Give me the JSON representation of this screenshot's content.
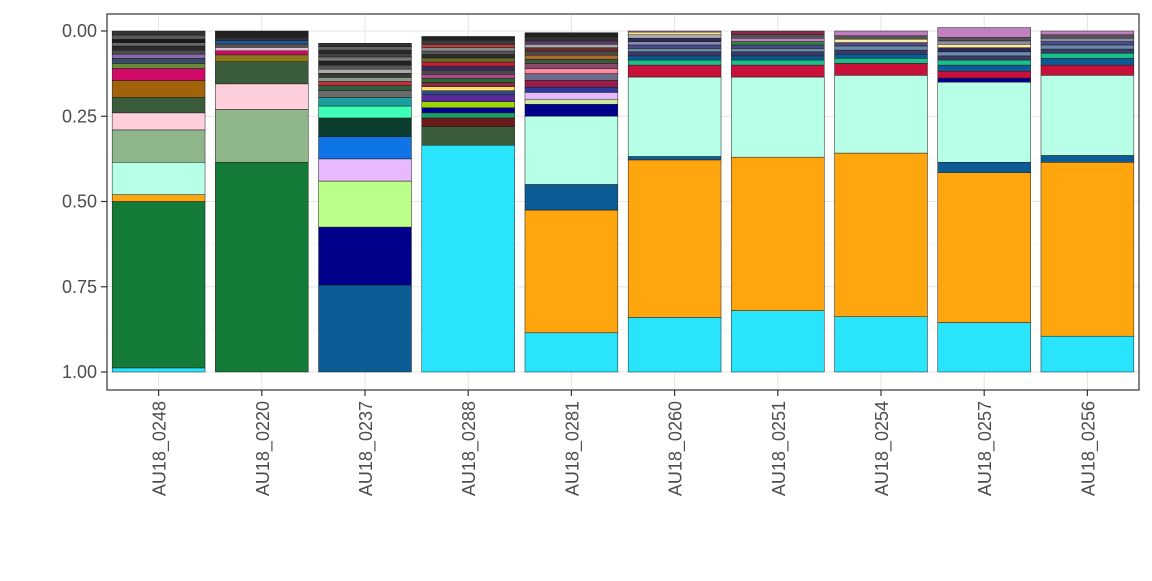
{
  "chart_data": {
    "type": "bar",
    "stacked": true,
    "orientation": "vertical",
    "y_reversed": true,
    "ylim": [
      0,
      1
    ],
    "y_ticks": [
      "0.00",
      "0.25",
      "0.50",
      "0.75",
      "1.00"
    ],
    "y_tick_values": [
      0,
      0.25,
      0.5,
      0.75,
      1.0
    ],
    "grid": true,
    "legend": "none",
    "xlabel": "",
    "ylabel": "",
    "categories": [
      "AU18_0248",
      "AU18_0220",
      "AU18_0237",
      "AU18_0288",
      "AU18_0281",
      "AU18_0260",
      "AU18_0251",
      "AU18_0254",
      "AU18_0257",
      "AU18_0256"
    ],
    "bars": [
      {
        "category": "AU18_0248",
        "segments": [
          {
            "value": 0.012,
            "color": "#29e4fb"
          },
          {
            "value": 0.488,
            "color": "#137a37"
          },
          {
            "value": 0.02,
            "color": "#ffa60f"
          },
          {
            "value": 0.095,
            "color": "#b8ffe8"
          },
          {
            "value": 0.095,
            "color": "#8fb68a"
          },
          {
            "value": 0.05,
            "color": "#ffcfdc"
          },
          {
            "value": 0.045,
            "color": "#3a5c3a"
          },
          {
            "value": 0.05,
            "color": "#a1620a"
          },
          {
            "value": 0.035,
            "color": "#d10a6a"
          },
          {
            "value": 0.015,
            "color": "#6a8a3a"
          },
          {
            "value": 0.015,
            "color": "#3a4a6a"
          },
          {
            "value": 0.012,
            "color": "#8a6aaa"
          },
          {
            "value": 0.012,
            "color": "#4a4a4a"
          },
          {
            "value": 0.012,
            "color": "#2a2a2a"
          },
          {
            "value": 0.01,
            "color": "#6a6a6a"
          },
          {
            "value": 0.01,
            "color": "#1a1a1a"
          },
          {
            "value": 0.012,
            "color": "#5a5a5a"
          },
          {
            "value": 0.012,
            "color": "#333333"
          }
        ]
      },
      {
        "category": "AU18_0220",
        "segments": [
          {
            "value": 0.615,
            "color": "#137a37"
          },
          {
            "value": 0.155,
            "color": "#8fb68a"
          },
          {
            "value": 0.075,
            "color": "#ffcfdc"
          },
          {
            "value": 0.065,
            "color": "#3a5c3a"
          },
          {
            "value": 0.02,
            "color": "#8a7a1a"
          },
          {
            "value": 0.012,
            "color": "#d10a6a"
          },
          {
            "value": 0.01,
            "color": "#e0c0d0"
          },
          {
            "value": 0.01,
            "color": "#555555"
          },
          {
            "value": 0.01,
            "color": "#1f5aa0"
          },
          {
            "value": 0.01,
            "color": "#333333"
          },
          {
            "value": 0.018,
            "color": "#222222"
          }
        ]
      },
      {
        "category": "AU18_0237",
        "segments": [
          {
            "value": 0.255,
            "color": "#0b5c94"
          },
          {
            "value": 0.17,
            "color": "#00008b"
          },
          {
            "value": 0.135,
            "color": "#b9ff8a"
          },
          {
            "value": 0.065,
            "color": "#e8b9ff"
          },
          {
            "value": 0.065,
            "color": "#0f74e6"
          },
          {
            "value": 0.055,
            "color": "#0b3d2e"
          },
          {
            "value": 0.035,
            "color": "#3dffb5"
          },
          {
            "value": 0.025,
            "color": "#1a9e9e"
          },
          {
            "value": 0.02,
            "color": "#6a6a6a"
          },
          {
            "value": 0.015,
            "color": "#2e5e3e"
          },
          {
            "value": 0.012,
            "color": "#c0303a"
          },
          {
            "value": 0.012,
            "color": "#8a9a8a"
          },
          {
            "value": 0.012,
            "color": "#3a3a3a"
          },
          {
            "value": 0.012,
            "color": "#aaaaaa"
          },
          {
            "value": 0.012,
            "color": "#555555"
          },
          {
            "value": 0.012,
            "color": "#222222"
          },
          {
            "value": 0.012,
            "color": "#777777"
          },
          {
            "value": 0.01,
            "color": "#444444"
          },
          {
            "value": 0.01,
            "color": "#2a2a2a"
          },
          {
            "value": 0.01,
            "color": "#666666"
          },
          {
            "value": 0.01,
            "color": "#333333"
          }
        ]
      },
      {
        "category": "AU18_0288",
        "segments": [
          {
            "value": 0.665,
            "color": "#29e4fb"
          },
          {
            "value": 0.055,
            "color": "#3a5c3a"
          },
          {
            "value": 0.025,
            "color": "#6a1a1a"
          },
          {
            "value": 0.015,
            "color": "#1a9e6a"
          },
          {
            "value": 0.015,
            "color": "#00008b"
          },
          {
            "value": 0.018,
            "color": "#9ad60a"
          },
          {
            "value": 0.02,
            "color": "#5a2a9a"
          },
          {
            "value": 0.012,
            "color": "#2a4a8a"
          },
          {
            "value": 0.012,
            "color": "#ffe060"
          },
          {
            "value": 0.012,
            "color": "#8a2a4a"
          },
          {
            "value": 0.012,
            "color": "#2a6a2a"
          },
          {
            "value": 0.012,
            "color": "#aa4a8a"
          },
          {
            "value": 0.012,
            "color": "#4a4a4a"
          },
          {
            "value": 0.012,
            "color": "#3a2a5a"
          },
          {
            "value": 0.012,
            "color": "#c02030"
          },
          {
            "value": 0.012,
            "color": "#6a6a2a"
          },
          {
            "value": 0.01,
            "color": "#2a2a2a"
          },
          {
            "value": 0.01,
            "color": "#555555"
          },
          {
            "value": 0.01,
            "color": "#8a8a8a"
          },
          {
            "value": 0.01,
            "color": "#b04040"
          },
          {
            "value": 0.012,
            "color": "#3a3a3a"
          },
          {
            "value": 0.011,
            "color": "#222222"
          }
        ]
      },
      {
        "category": "AU18_0281",
        "segments": [
          {
            "value": 0.115,
            "color": "#29e4fb"
          },
          {
            "value": 0.36,
            "color": "#ffa60f"
          },
          {
            "value": 0.075,
            "color": "#0b5c94"
          },
          {
            "value": 0.2,
            "color": "#b8ffe8"
          },
          {
            "value": 0.035,
            "color": "#00008b"
          },
          {
            "value": 0.015,
            "color": "#cfe8a0"
          },
          {
            "value": 0.02,
            "color": "#e8b9ff"
          },
          {
            "value": 0.015,
            "color": "#2a3a9a"
          },
          {
            "value": 0.02,
            "color": "#9a1a4a"
          },
          {
            "value": 0.02,
            "color": "#6a6a8a"
          },
          {
            "value": 0.015,
            "color": "#ff8aa0"
          },
          {
            "value": 0.015,
            "color": "#8a4a6a"
          },
          {
            "value": 0.012,
            "color": "#3a5a3a"
          },
          {
            "value": 0.012,
            "color": "#aa6a2a"
          },
          {
            "value": 0.012,
            "color": "#4a4a4a"
          },
          {
            "value": 0.01,
            "color": "#6a2a2a"
          },
          {
            "value": 0.01,
            "color": "#aaaaaa"
          },
          {
            "value": 0.01,
            "color": "#5a3a6a"
          },
          {
            "value": 0.012,
            "color": "#333333"
          },
          {
            "value": 0.012,
            "color": "#222222"
          }
        ]
      },
      {
        "category": "AU18_0260",
        "segments": [
          {
            "value": 0.16,
            "color": "#29e4fb"
          },
          {
            "value": 0.462,
            "color": "#ffa60f"
          },
          {
            "value": 0.01,
            "color": "#0b5c94"
          },
          {
            "value": 0.233,
            "color": "#b8ffe8"
          },
          {
            "value": 0.035,
            "color": "#c8103a"
          },
          {
            "value": 0.015,
            "color": "#1ac08a"
          },
          {
            "value": 0.012,
            "color": "#0b5c94"
          },
          {
            "value": 0.012,
            "color": "#3a3a6a"
          },
          {
            "value": 0.01,
            "color": "#6a8aaa"
          },
          {
            "value": 0.01,
            "color": "#4a4a8a"
          },
          {
            "value": 0.01,
            "color": "#8a8aaa"
          },
          {
            "value": 0.01,
            "color": "#2a2a5a"
          },
          {
            "value": 0.01,
            "color": "#aaaaaa"
          },
          {
            "value": 0.008,
            "color": "#ffe8a0"
          },
          {
            "value": 0.003,
            "color": "#c080c0"
          }
        ]
      },
      {
        "category": "AU18_0251",
        "segments": [
          {
            "value": 0.18,
            "color": "#29e4fb"
          },
          {
            "value": 0.45,
            "color": "#ffa60f"
          },
          {
            "value": 0.235,
            "color": "#b8ffe8"
          },
          {
            "value": 0.035,
            "color": "#c8103a"
          },
          {
            "value": 0.015,
            "color": "#1ac08a"
          },
          {
            "value": 0.012,
            "color": "#0b5c94"
          },
          {
            "value": 0.012,
            "color": "#3a3a6a"
          },
          {
            "value": 0.01,
            "color": "#6a8aaa"
          },
          {
            "value": 0.01,
            "color": "#4a4a8a"
          },
          {
            "value": 0.01,
            "color": "#2a8a3a"
          },
          {
            "value": 0.01,
            "color": "#c080c0"
          },
          {
            "value": 0.01,
            "color": "#555555"
          },
          {
            "value": 0.011,
            "color": "#8a2a4a"
          }
        ]
      },
      {
        "category": "AU18_0254",
        "segments": [
          {
            "value": 0.162,
            "color": "#29e4fb"
          },
          {
            "value": 0.48,
            "color": "#ffa60f"
          },
          {
            "value": 0.228,
            "color": "#b8ffe8"
          },
          {
            "value": 0.035,
            "color": "#c8103a"
          },
          {
            "value": 0.015,
            "color": "#1ac08a"
          },
          {
            "value": 0.012,
            "color": "#0b5c94"
          },
          {
            "value": 0.012,
            "color": "#3a3a6a"
          },
          {
            "value": 0.012,
            "color": "#6a8aaa"
          },
          {
            "value": 0.01,
            "color": "#4a4a8a"
          },
          {
            "value": 0.01,
            "color": "#ffe8a0"
          },
          {
            "value": 0.01,
            "color": "#555555"
          },
          {
            "value": 0.014,
            "color": "#c080c0"
          }
        ]
      },
      {
        "category": "AU18_0257",
        "segments": [
          {
            "value": 0.145,
            "color": "#29e4fb"
          },
          {
            "value": 0.44,
            "color": "#ffa60f"
          },
          {
            "value": 0.03,
            "color": "#0b5c94"
          },
          {
            "value": 0.235,
            "color": "#b8ffe8"
          },
          {
            "value": 0.012,
            "color": "#00008b"
          },
          {
            "value": 0.02,
            "color": "#c8103a"
          },
          {
            "value": 0.018,
            "color": "#0b5c94"
          },
          {
            "value": 0.015,
            "color": "#1ac08a"
          },
          {
            "value": 0.012,
            "color": "#3a3a6a"
          },
          {
            "value": 0.012,
            "color": "#6a8aaa"
          },
          {
            "value": 0.012,
            "color": "#2a2a5a"
          },
          {
            "value": 0.01,
            "color": "#ffe8a0"
          },
          {
            "value": 0.01,
            "color": "#8a8aaa"
          },
          {
            "value": 0.01,
            "color": "#555555"
          },
          {
            "value": 0.029,
            "color": "#c080c0"
          }
        ]
      },
      {
        "category": "AU18_0256",
        "segments": [
          {
            "value": 0.105,
            "color": "#29e4fb"
          },
          {
            "value": 0.51,
            "color": "#ffa60f"
          },
          {
            "value": 0.02,
            "color": "#0b5c94"
          },
          {
            "value": 0.235,
            "color": "#b8ffe8"
          },
          {
            "value": 0.03,
            "color": "#c8103a"
          },
          {
            "value": 0.02,
            "color": "#0b5c94"
          },
          {
            "value": 0.015,
            "color": "#1ac08a"
          },
          {
            "value": 0.012,
            "color": "#3a3a6a"
          },
          {
            "value": 0.012,
            "color": "#6a8aaa"
          },
          {
            "value": 0.01,
            "color": "#4a4a8a"
          },
          {
            "value": 0.01,
            "color": "#8a8aaa"
          },
          {
            "value": 0.01,
            "color": "#555555"
          },
          {
            "value": 0.011,
            "color": "#c080c0"
          }
        ]
      }
    ]
  }
}
